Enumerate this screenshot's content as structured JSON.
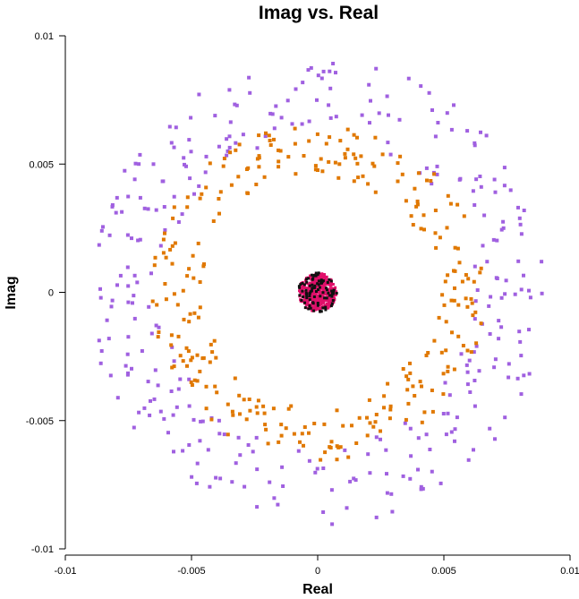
{
  "chart_data": {
    "type": "scatter",
    "title": "Imag vs. Real",
    "xlabel": "Real",
    "ylabel": "Imag",
    "xlim": [
      -0.01,
      0.01
    ],
    "ylim": [
      -0.01,
      0.01
    ],
    "x_ticks": [
      {
        "value": -0.01,
        "label": "-0.01"
      },
      {
        "value": -0.005,
        "label": "-0.005"
      },
      {
        "value": 0,
        "label": "0"
      },
      {
        "value": 0.005,
        "label": "0.005"
      },
      {
        "value": 0.01,
        "label": "0.01"
      }
    ],
    "y_ticks": [
      {
        "value": 0.01,
        "label": "0.01"
      },
      {
        "value": 0.005,
        "label": "0.005"
      },
      {
        "value": 0,
        "label": "0"
      },
      {
        "value": -0.005,
        "label": "-0.005"
      },
      {
        "value": -0.01,
        "label": "-0.01"
      }
    ],
    "grid": false,
    "legend": "none",
    "series": [
      {
        "color": "#a060e0",
        "distribution": "ring",
        "center": [
          0.0,
          0.0
        ],
        "inner_radius": 0.0061,
        "outer_radius": 0.0091,
        "count": 330
      },
      {
        "color": "#e07800",
        "distribution": "ring",
        "center": [
          0.0,
          0.0
        ],
        "inner_radius": 0.0045,
        "outer_radius": 0.0066,
        "count": 290
      },
      {
        "color": "#e0106a",
        "distribution": "disk",
        "center": [
          0.0,
          0.0
        ],
        "radius": 0.00075,
        "count": 420
      },
      {
        "color": "#101010",
        "distribution": "disk",
        "center": [
          0.0,
          0.0
        ],
        "radius": 0.00078,
        "count": 90
      }
    ]
  }
}
